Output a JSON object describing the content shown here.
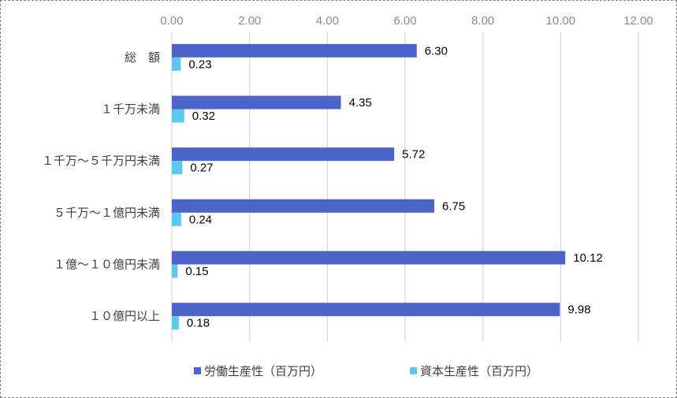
{
  "chart_data": {
    "type": "bar",
    "orientation": "horizontal",
    "title": "",
    "xlabel": "",
    "ylabel": "",
    "xlim": [
      0,
      12
    ],
    "x_ticks": [
      "0.00",
      "2.00",
      "4.00",
      "6.00",
      "8.00",
      "10.00",
      "12.00"
    ],
    "x_tick_values": [
      0,
      2,
      4,
      6,
      8,
      10,
      12
    ],
    "categories": [
      "総　額",
      "１千万未満",
      "１千万～５千万円未満",
      "５千万～１億円未満",
      "１億～１０億円未満",
      "１０億円以上"
    ],
    "series": [
      {
        "name": "労働生産性（百万円）",
        "color": "#4c64c9",
        "values": [
          6.3,
          4.35,
          5.72,
          6.75,
          10.12,
          9.98
        ],
        "labels": [
          "6.30",
          "4.35",
          "5.72",
          "6.75",
          "10.12",
          "9.98"
        ]
      },
      {
        "name": "資本生産性（百万円）",
        "color": "#5bc8f0",
        "values": [
          0.23,
          0.32,
          0.27,
          0.24,
          0.15,
          0.18
        ],
        "labels": [
          "0.23",
          "0.32",
          "0.27",
          "0.24",
          "0.15",
          "0.18"
        ]
      }
    ],
    "grid": true,
    "legend_position": "bottom"
  }
}
